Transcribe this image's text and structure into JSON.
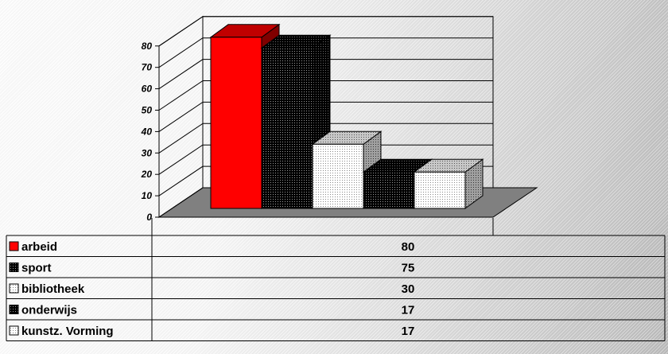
{
  "chart_data": {
    "type": "bar",
    "categories": [
      "arbeid",
      "sport",
      "bibliotheek",
      "onderwijs",
      "kunstz. Vorming"
    ],
    "values": [
      80,
      75,
      30,
      17,
      17
    ],
    "y_ticks": [
      "0",
      "10",
      "20",
      "30",
      "40",
      "50",
      "60",
      "70",
      "80"
    ],
    "ylim": [
      0,
      80
    ],
    "grid": true,
    "legend": "data-table below chart",
    "colors": {
      "arbeid": "#ff0000",
      "sport": "#000000",
      "bibliotheek": "#ffffff",
      "onderwijs": "#000000",
      "kunstz. Vorming": "#ffffff",
      "floor": "#808080"
    }
  },
  "table": {
    "rows": [
      {
        "label": "arbeid",
        "value": "80"
      },
      {
        "label": "sport",
        "value": "75"
      },
      {
        "label": "bibliotheek",
        "value": "30"
      },
      {
        "label": "onderwijs",
        "value": "17"
      },
      {
        "label": "kunstz. Vorming",
        "value": "17"
      }
    ]
  }
}
